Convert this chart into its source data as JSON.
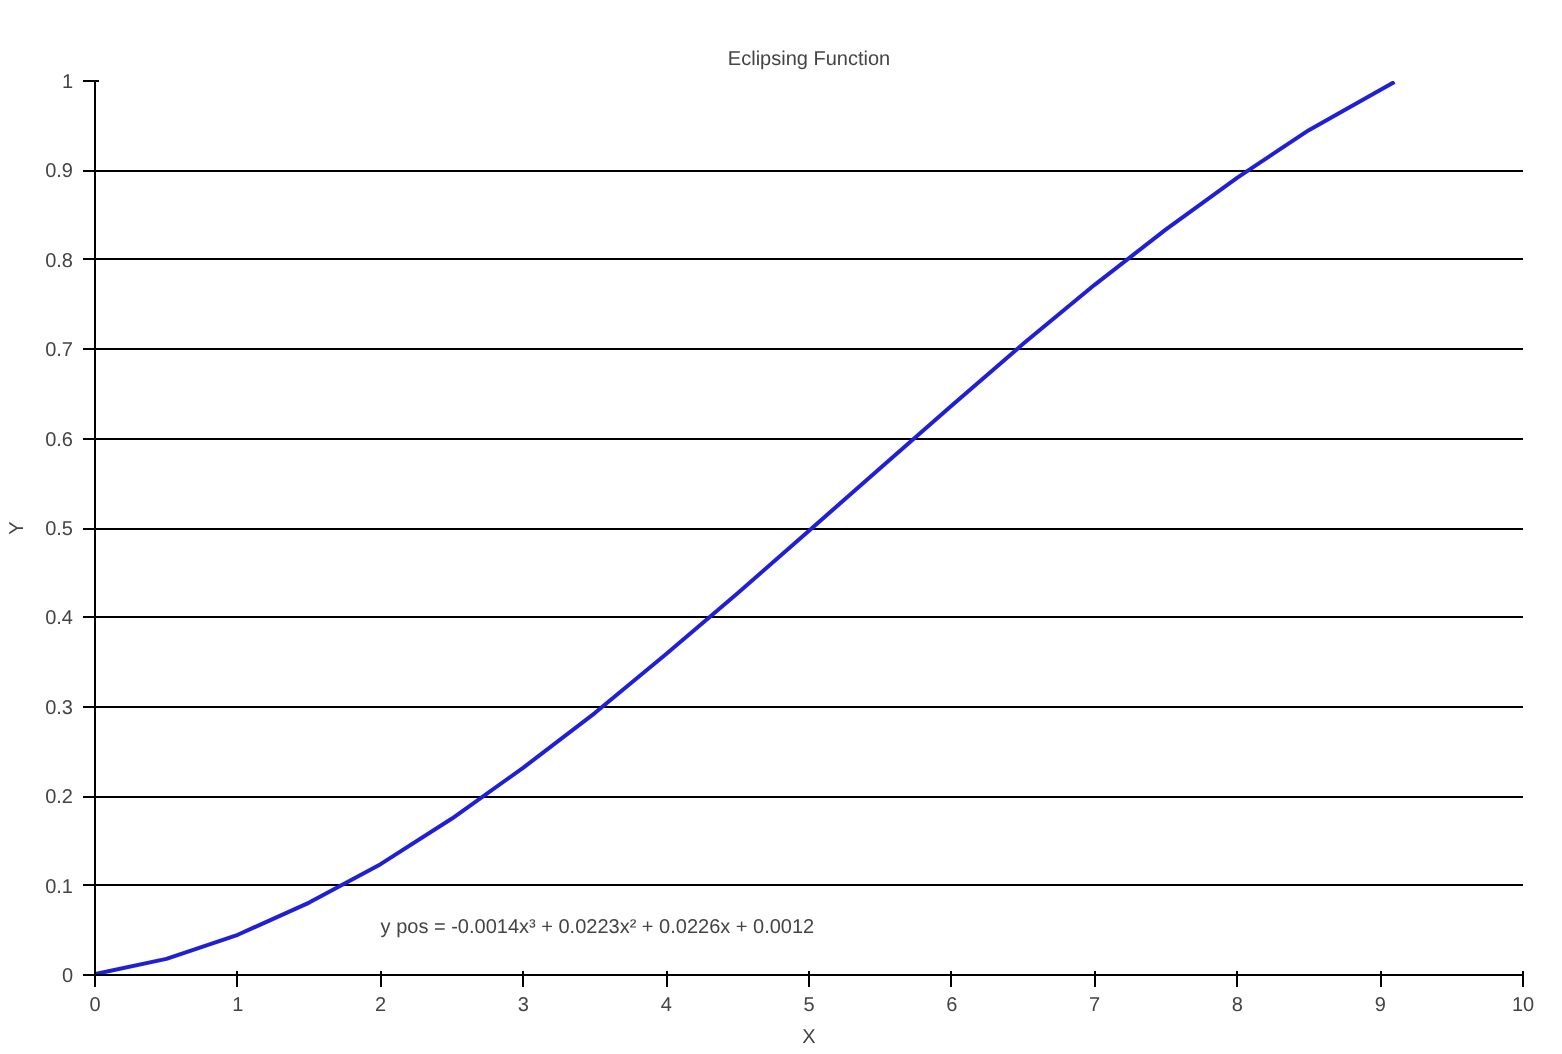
{
  "chart_data": {
    "type": "line",
    "title": "Eclipsing Function",
    "xlabel": "X",
    "ylabel": "Y",
    "x": [
      0,
      0.5,
      1,
      1.5,
      2,
      2.5,
      3,
      3.5,
      4,
      4.5,
      5,
      5.5,
      6,
      6.5,
      7,
      7.5,
      8,
      8.5,
      9,
      9.1
    ],
    "series": [
      {
        "color": "#1f1fd6",
        "values": [
          0.001,
          0.018,
          0.045,
          0.081,
          0.124,
          0.175,
          0.232,
          0.293,
          0.359,
          0.427,
          0.497,
          0.567,
          0.637,
          0.706,
          0.772,
          0.834,
          0.892,
          0.945,
          0.99,
          0.999
        ]
      }
    ],
    "xlim": [
      0,
      10
    ],
    "ylim": [
      0,
      1
    ],
    "xticks": [
      0,
      1,
      2,
      3,
      4,
      5,
      6,
      7,
      8,
      9,
      10
    ],
    "yticks": [
      0,
      0.1,
      0.2,
      0.3,
      0.4,
      0.5,
      0.6,
      0.7,
      0.8,
      0.9,
      1
    ],
    "grid": "y",
    "marker": "none",
    "line_style": "solid",
    "annotations": [
      "y pos = -0.0014x³ + 0.0223x² + 0.0226x + 0.0012"
    ]
  }
}
